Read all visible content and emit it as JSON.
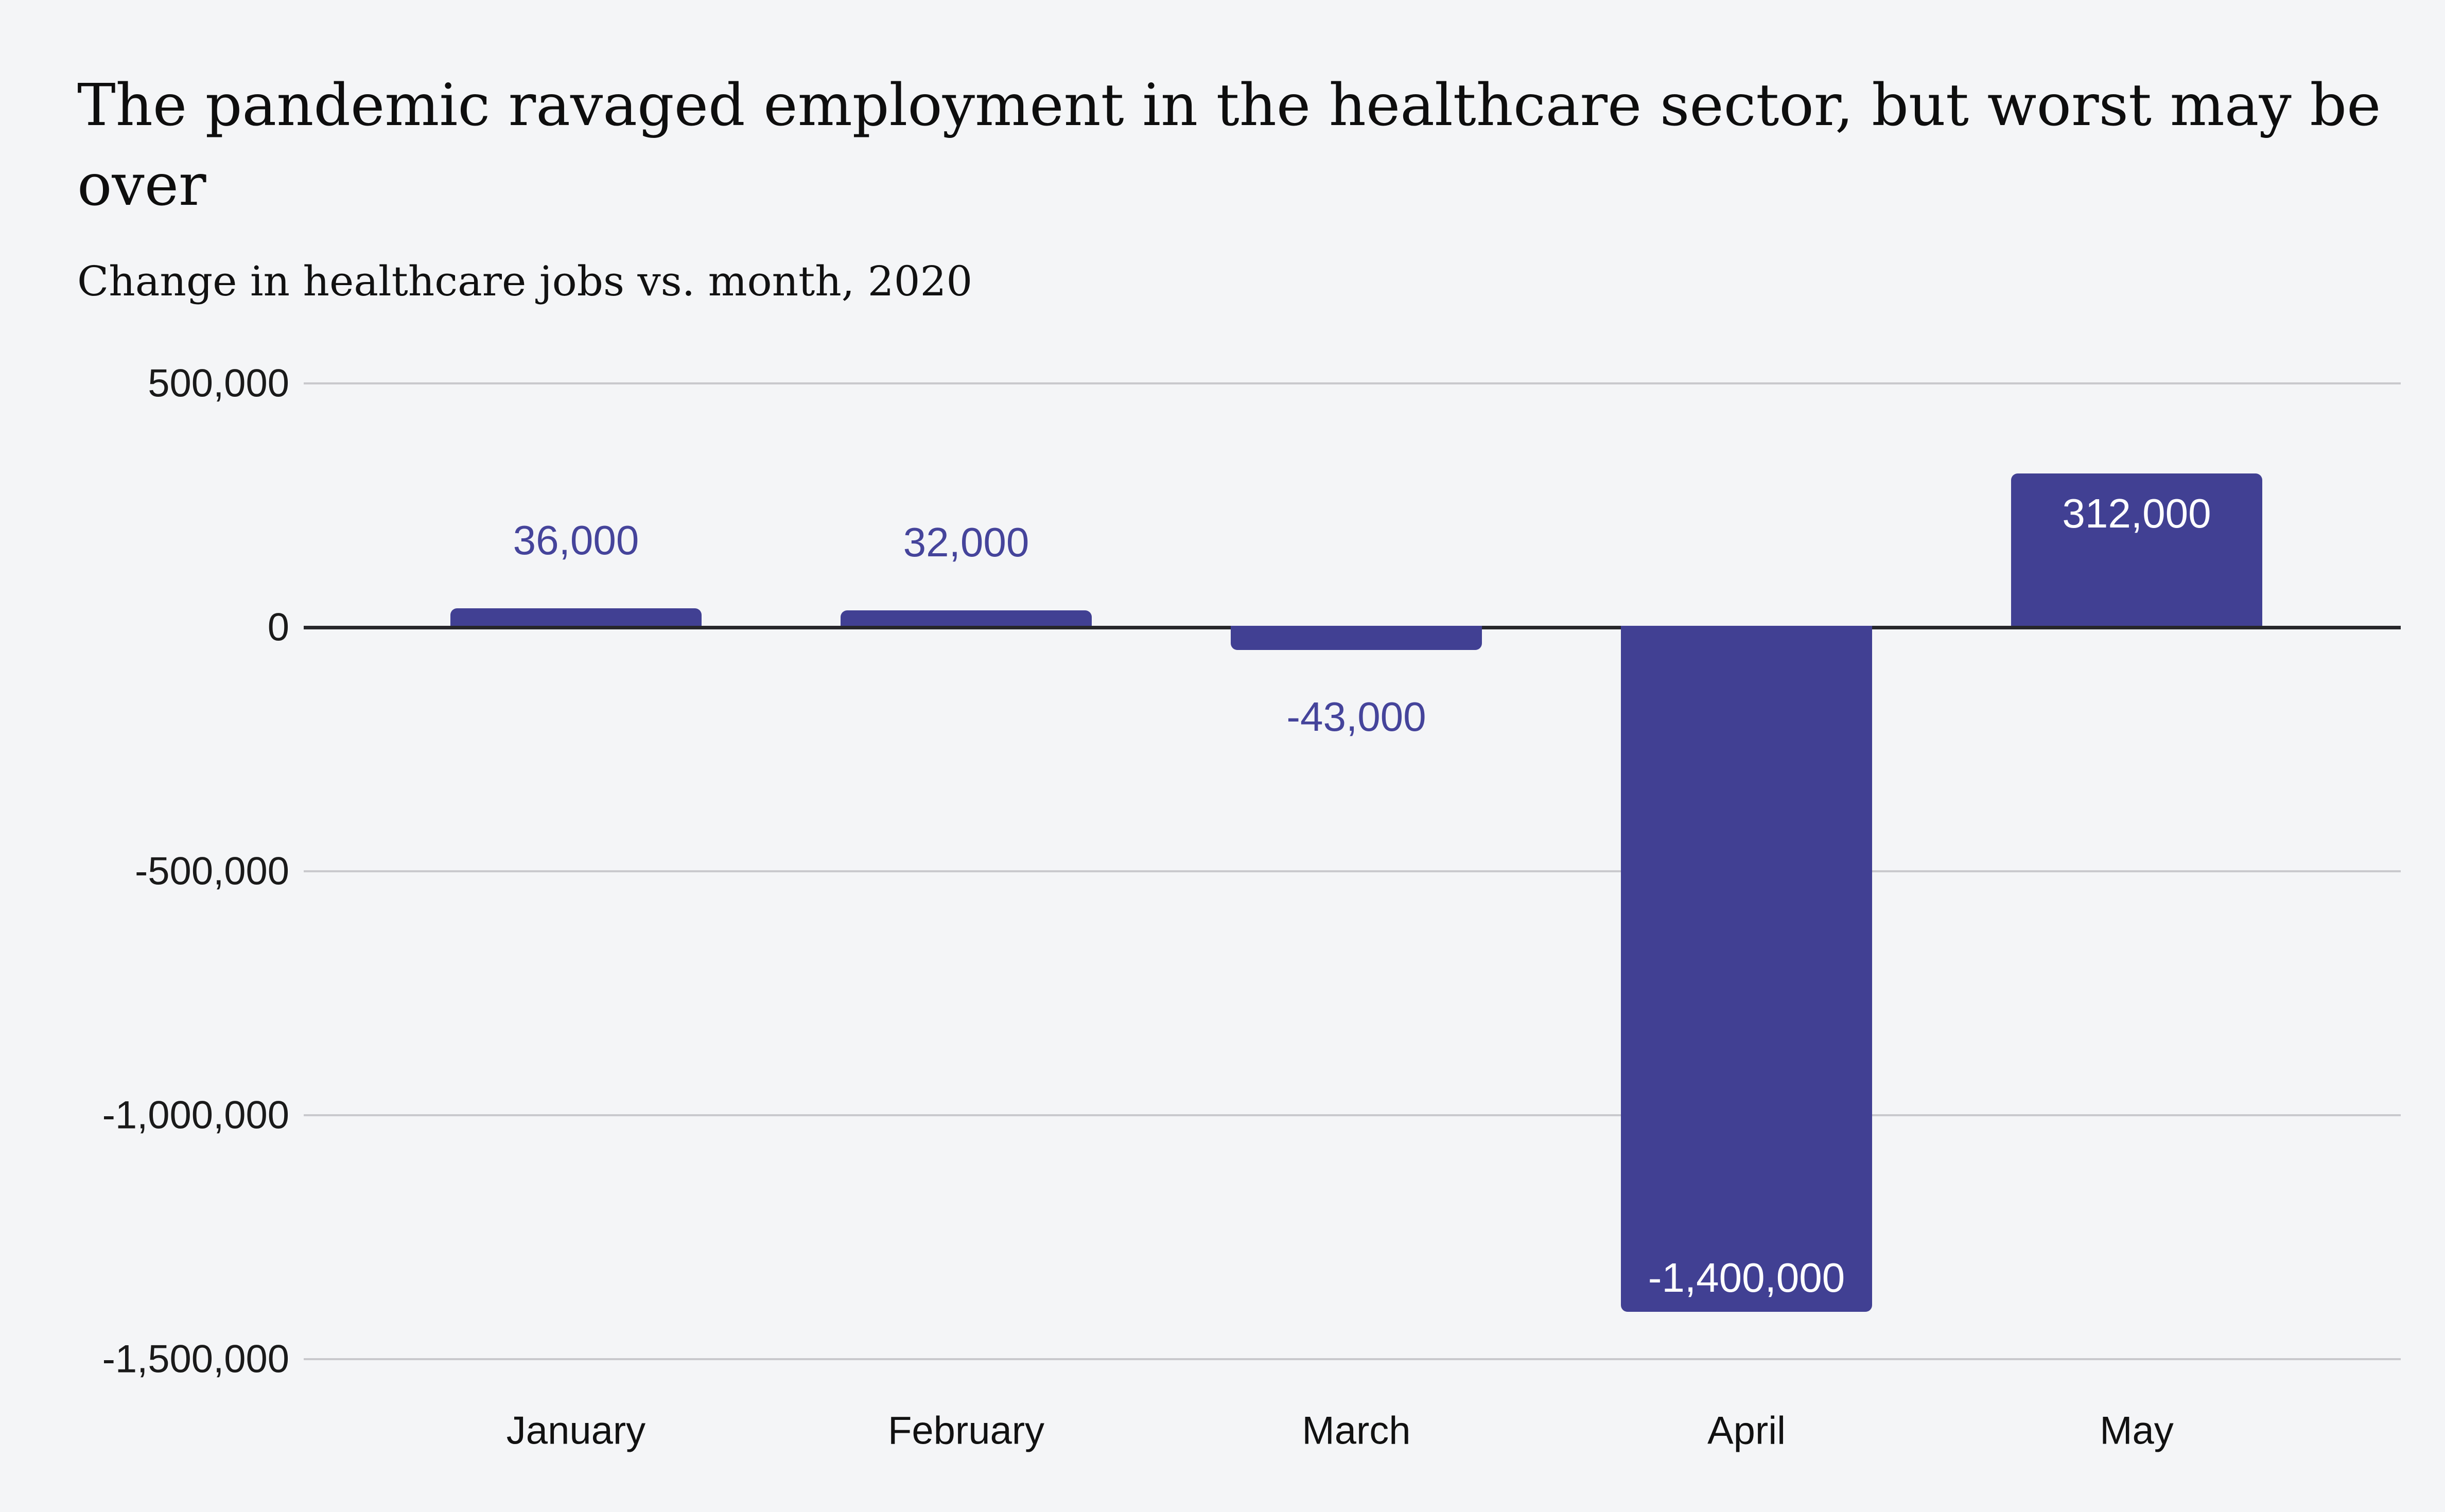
{
  "page": {
    "background_color": "#f4f5f7"
  },
  "header": {
    "title": "The pandemic ravaged employment in the healthcare sector, but worst may be over",
    "title_line1": "The pandemic ravaged employment in the healthcare sector, but worst may be",
    "title_line2": "over",
    "subtitle": "Change in healthcare jobs vs. month, 2020"
  },
  "chart_data": {
    "type": "bar",
    "title": "The pandemic ravaged employment in the healthcare sector, but worst may be over",
    "subtitle": "Change in healthcare jobs vs. month, 2020",
    "categories": [
      "January",
      "February",
      "March",
      "April",
      "May"
    ],
    "values": [
      36000,
      32000,
      -43000,
      -1400000,
      312000
    ],
    "value_labels": [
      "36,000",
      "32,000",
      "-43,000",
      "-1,400,000",
      "312,000"
    ],
    "xlabel": "",
    "ylabel": "",
    "ylim": [
      -1500000,
      500000
    ],
    "ytick_values": [
      500000,
      0,
      -500000,
      -1000000,
      -1500000
    ],
    "ytick_labels": [
      "500,000",
      "0",
      "-500,000",
      "-1,000,000",
      "-1,500,000"
    ],
    "grid": "horizontal",
    "legend": "none",
    "colors": {
      "bar": "#414093",
      "value_label_outside": "#45449b",
      "value_label_inside": "#ffffff",
      "gridline": "#c9c9cd",
      "zero_axis_line": "#27272b",
      "tick_text": "#1a1a1a",
      "background": "#f4f5f7"
    }
  }
}
